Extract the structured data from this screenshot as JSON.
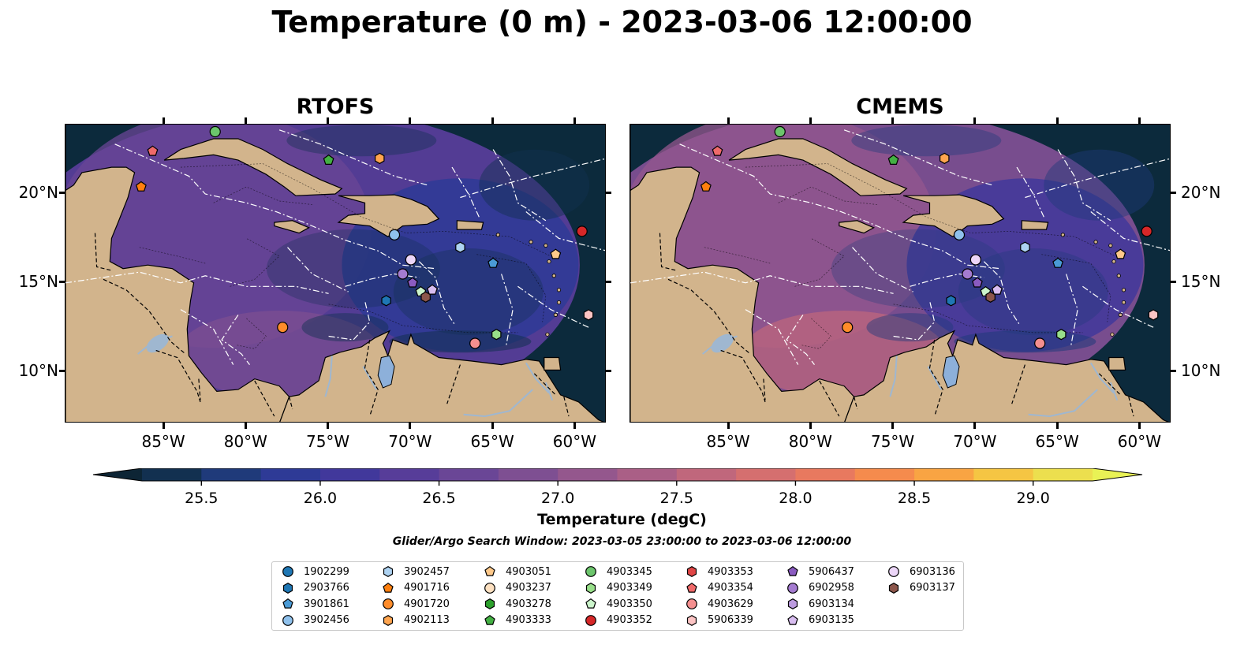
{
  "title": "Temperature (0 m) - 2023-03-06 12:00:00",
  "panels": [
    {
      "title": "RTOFS"
    },
    {
      "title": "CMEMS"
    }
  ],
  "axes": {
    "lon_labels": [
      "85°W",
      "80°W",
      "75°W",
      "70°W",
      "65°W",
      "60°W"
    ],
    "lat_labels": [
      "20°N",
      "15°N",
      "10°N"
    ]
  },
  "colorbar": {
    "label": "Temperature (degC)",
    "tick_labels": [
      "25.5",
      "26.0",
      "26.5",
      "27.0",
      "27.5",
      "28.0",
      "28.5",
      "29.0"
    ],
    "colors": [
      "#0d2535",
      "#123050",
      "#1f3a7a",
      "#2e3a96",
      "#41389b",
      "#573d99",
      "#6a4696",
      "#7e4f92",
      "#94578d",
      "#aa5f86",
      "#c0677c",
      "#d56f6f",
      "#e8795f",
      "#f58b4d",
      "#f9a443",
      "#f5c543",
      "#ecdf4e",
      "#e9f255"
    ]
  },
  "search_window": "Glider/Argo Search Window: 2023-03-05 23:00:00 to 2023-03-06 12:00:00",
  "legend": [
    {
      "id": "1902299",
      "color": "#1f77b4",
      "marker": "circle"
    },
    {
      "id": "2903766",
      "color": "#1f77b4",
      "marker": "hexagon"
    },
    {
      "id": "3901861",
      "color": "#4a9bd6",
      "marker": "pentagon"
    },
    {
      "id": "3902456",
      "color": "#8fc1ec",
      "marker": "circle"
    },
    {
      "id": "3902457",
      "color": "#aed3f2",
      "marker": "hexagon"
    },
    {
      "id": "4901716",
      "color": "#ff7f0e",
      "marker": "pentagon"
    },
    {
      "id": "4901720",
      "color": "#ff8c2a",
      "marker": "circle"
    },
    {
      "id": "4902113",
      "color": "#ffa54f",
      "marker": "hexagon"
    },
    {
      "id": "4903051",
      "color": "#ffc98a",
      "marker": "pentagon"
    },
    {
      "id": "4903237",
      "color": "#fde0c0",
      "marker": "circle"
    },
    {
      "id": "4903278",
      "color": "#2ca02c",
      "marker": "hexagon"
    },
    {
      "id": "4903333",
      "color": "#43b043",
      "marker": "pentagon"
    },
    {
      "id": "4903345",
      "color": "#6cc56c",
      "marker": "circle"
    },
    {
      "id": "4903349",
      "color": "#98df8a",
      "marker": "hexagon"
    },
    {
      "id": "4903350",
      "color": "#ccf5cc",
      "marker": "pentagon"
    },
    {
      "id": "4903352",
      "color": "#d62728",
      "marker": "circle"
    },
    {
      "id": "4903353",
      "color": "#e04646",
      "marker": "hexagon"
    },
    {
      "id": "4903354",
      "color": "#f06a6a",
      "marker": "pentagon"
    },
    {
      "id": "4903629",
      "color": "#f58f8f",
      "marker": "circle"
    },
    {
      "id": "5906339",
      "color": "#fcc4c4",
      "marker": "hexagon"
    },
    {
      "id": "5906437",
      "color": "#8a5bc0",
      "marker": "pentagon"
    },
    {
      "id": "6902958",
      "color": "#a47bd0",
      "marker": "circle"
    },
    {
      "id": "6903134",
      "color": "#bd9ce0",
      "marker": "hexagon"
    },
    {
      "id": "6903135",
      "color": "#d8bdf0",
      "marker": "pentagon"
    },
    {
      "id": "6903136",
      "color": "#ecd6f8",
      "marker": "circle"
    },
    {
      "id": "6903137",
      "color": "#8c564b",
      "marker": "hexagon"
    }
  ],
  "floats": [
    {
      "id": "4903352",
      "lon": -59.6,
      "lat": 17.9
    },
    {
      "id": "3902456",
      "lon": -71.0,
      "lat": 17.7
    },
    {
      "id": "3902457",
      "lon": -67.0,
      "lat": 17.0
    },
    {
      "id": "3901861",
      "lon": -65.0,
      "lat": 16.1
    },
    {
      "id": "6903136",
      "lon": -70.0,
      "lat": 16.3
    },
    {
      "id": "6902958",
      "lon": -70.5,
      "lat": 15.5
    },
    {
      "id": "5906437",
      "lon": -69.9,
      "lat": 15.0
    },
    {
      "id": "6903135",
      "lon": -68.7,
      "lat": 14.6
    },
    {
      "id": "4903350",
      "lon": -69.4,
      "lat": 14.5
    },
    {
      "id": "6903137",
      "lon": -69.1,
      "lat": 14.2
    },
    {
      "id": "2903766",
      "lon": -71.5,
      "lat": 14.0
    },
    {
      "id": "4901720",
      "lon": -77.8,
      "lat": 12.5
    },
    {
      "id": "4903349",
      "lon": -64.8,
      "lat": 12.1
    },
    {
      "id": "4903629",
      "lon": -66.1,
      "lat": 11.6
    },
    {
      "id": "5906339",
      "lon": -59.2,
      "lat": 13.2
    },
    {
      "id": "4901716",
      "lon": -86.4,
      "lat": 20.4
    },
    {
      "id": "4903354",
      "lon": -85.7,
      "lat": 22.4
    },
    {
      "id": "4903345",
      "lon": -81.9,
      "lat": 23.5
    },
    {
      "id": "4903333",
      "lon": -75.0,
      "lat": 21.9
    },
    {
      "id": "4902113",
      "lon": -71.9,
      "lat": 22.0
    },
    {
      "id": "4903051",
      "lon": -61.2,
      "lat": 16.6
    }
  ]
}
